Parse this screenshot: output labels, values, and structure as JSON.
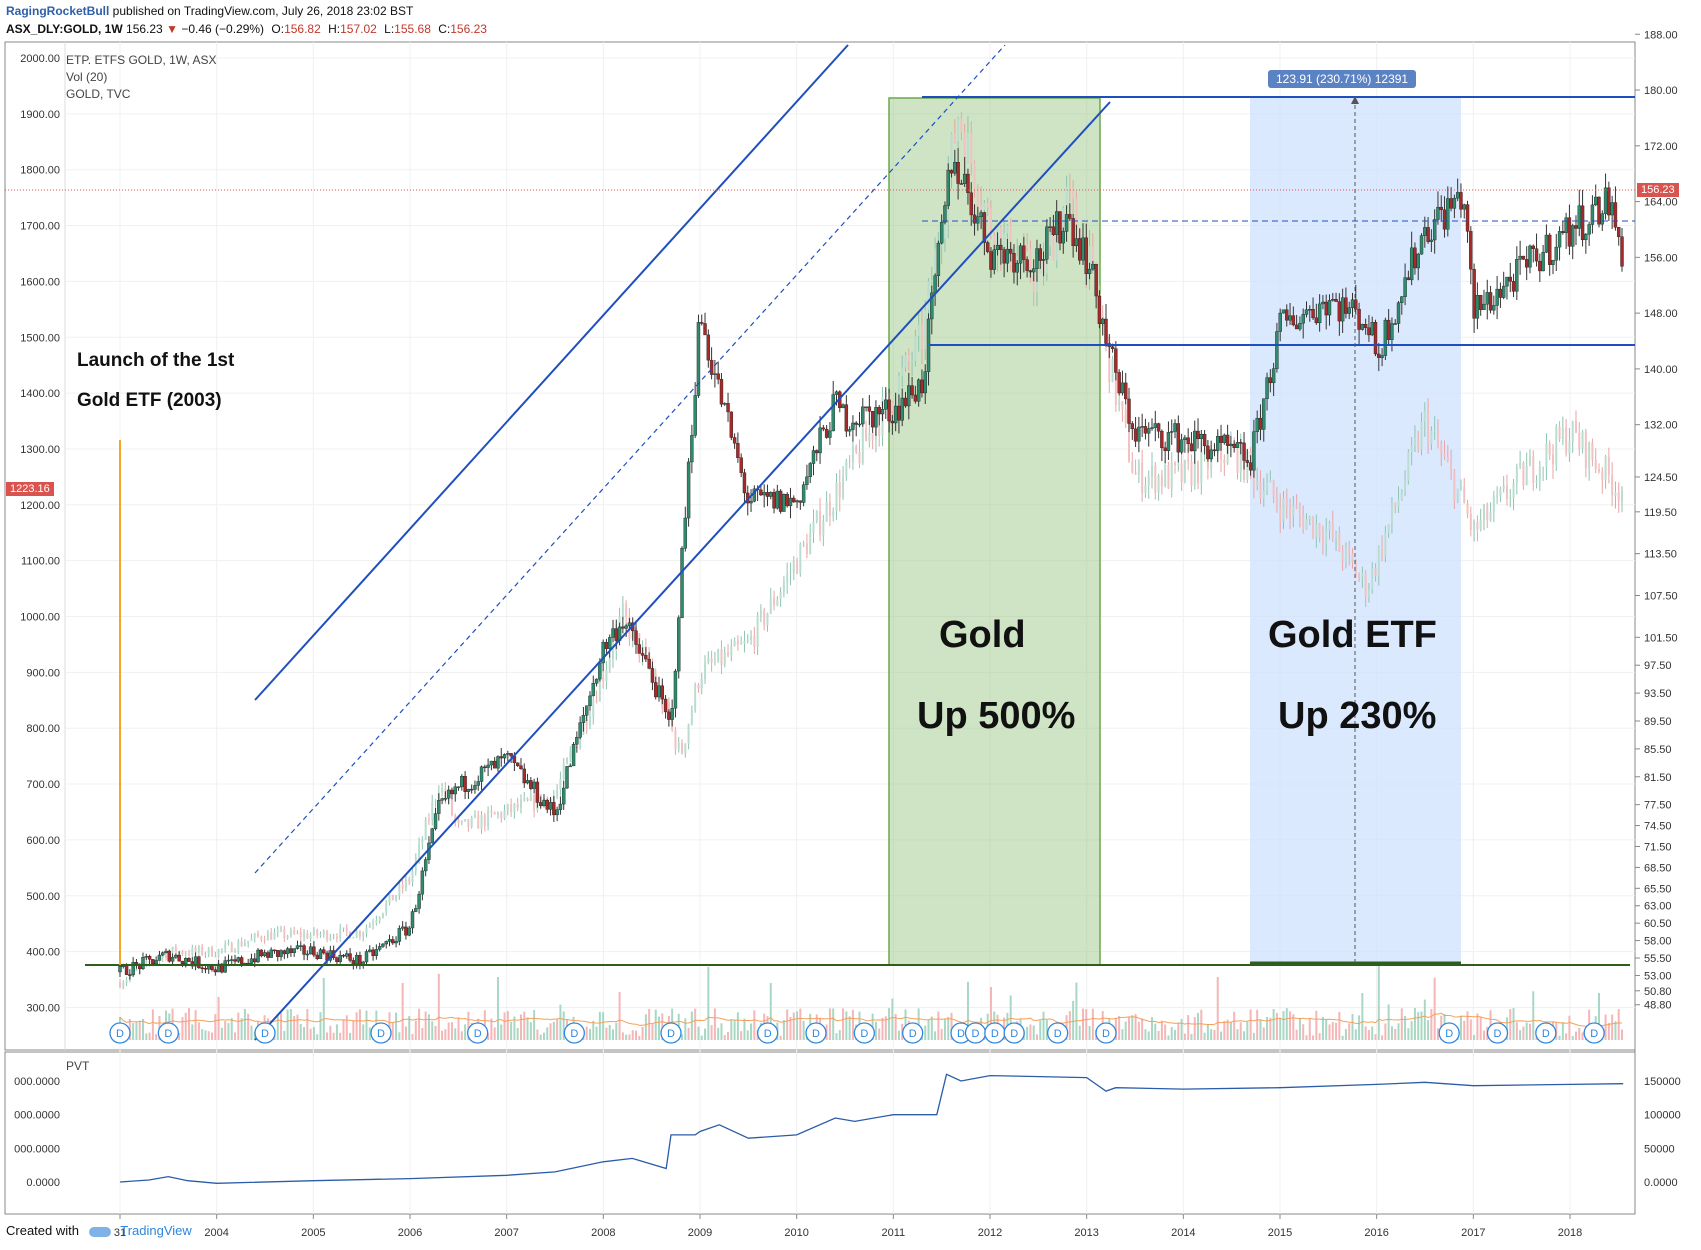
{
  "header": {
    "author": "RagingRocketBull",
    "published": " published on TradingView.com, July 26, 2018 23:02 BST",
    "symbol": "ASX_DLY:GOLD, 1W",
    "last": "156.23",
    "change": "−0.46 (−0.29%)",
    "o_label": "O:",
    "o": "156.82",
    "h_label": "H:",
    "h": "157.02",
    "l_label": "L:",
    "l": "155.68",
    "c_label": "C:",
    "c": "156.23"
  },
  "legend": {
    "line1": "ETP. ETFS GOLD, 1W, ASX",
    "line2": "Vol (20)",
    "line3": "GOLD, TVC"
  },
  "annotations": {
    "launch_line1": "Launch of the 1st",
    "launch_line2": "Gold ETF (2003)",
    "gold_title": "Gold",
    "gold_up": "Up 500%",
    "etf_title": "Gold ETF",
    "etf_up": "Up 230%",
    "measure": "123.91 (230.71%) 12391"
  },
  "price_tags": {
    "right": "156.23",
    "left": "1223.16"
  },
  "indicator": {
    "name": "PVT"
  },
  "footer": {
    "created": "Created with",
    "brand": "TradingView"
  },
  "colors": {
    "up": "#2e8b6e",
    "down": "#a52a2a",
    "trendline": "#1f4fbf",
    "green_zone": "#93c47d",
    "blue_zone": "#cfe2ff",
    "support": "#2e5e1e",
    "pvt": "#2b5ca8",
    "orange": "#f5a623"
  },
  "chart_data": {
    "type": "candlestick",
    "x_ticks": [
      "31",
      "2004",
      "2005",
      "2006",
      "2007",
      "2008",
      "2009",
      "2010",
      "2011",
      "2012",
      "2013",
      "2014",
      "2015",
      "2016",
      "2017",
      "2018"
    ],
    "left_axis_ticks": [
      "2000.00",
      "1900.00",
      "1800.00",
      "1700.00",
      "1600.00",
      "1500.00",
      "1400.00",
      "1300.00",
      "1200.00",
      "1100.00",
      "1000.00",
      "900.00",
      "800.00",
      "700.00",
      "600.00",
      "500.00",
      "400.00",
      "300.00"
    ],
    "right_axis_ticks": [
      "188.00",
      "180.00",
      "172.00",
      "164.00",
      "156.00",
      "148.00",
      "140.00",
      "132.00",
      "124.50",
      "119.50",
      "113.50",
      "107.50",
      "101.50",
      "97.50",
      "93.50",
      "89.50",
      "85.50",
      "81.50",
      "77.50",
      "74.50",
      "71.50",
      "68.50",
      "65.50",
      "63.00",
      "60.50",
      "58.00",
      "55.50",
      "53.00",
      "50.80",
      "48.80"
    ],
    "pvt_left_ticks": [
      "000.0000",
      "000.0000",
      "000.0000",
      "0.0000"
    ],
    "pvt_right_ticks": [
      "150000",
      "100000",
      "50000",
      "0.0000"
    ],
    "series": [
      {
        "name": "GOLD, TVC",
        "x": [
          2003.0,
          2003.5,
          2004.0,
          2004.5,
          2005.0,
          2005.5,
          2006.0,
          2006.3,
          2006.5,
          2007.0,
          2007.5,
          2008.0,
          2008.2,
          2008.5,
          2008.8,
          2009.0,
          2009.5,
          2010.0,
          2010.5,
          2011.0,
          2011.3,
          2011.67,
          2012.0,
          2012.5,
          2012.8,
          2013.0,
          2013.3,
          2013.5,
          2014.0,
          2014.5,
          2015.0,
          2015.5,
          2015.9,
          2016.0,
          2016.5,
          2016.9,
          2017.0,
          2017.5,
          2018.0,
          2018.5
        ],
        "y": [
          345,
          400,
          400,
          430,
          430,
          435,
          530,
          700,
          620,
          650,
          680,
          900,
          1000,
          900,
          750,
          900,
          950,
          1100,
          1250,
          1400,
          1500,
          1900,
          1700,
          1600,
          1750,
          1650,
          1400,
          1250,
          1250,
          1300,
          1200,
          1150,
          1050,
          1100,
          1350,
          1200,
          1150,
          1250,
          1330,
          1230
        ]
      },
      {
        "name": "ETP. ETFS GOLD",
        "x": [
          2003.0,
          2003.5,
          2004.0,
          2004.5,
          2005.0,
          2005.5,
          2006.0,
          2006.3,
          2006.5,
          2007.0,
          2007.5,
          2008.0,
          2008.2,
          2008.5,
          2008.7,
          2008.8,
          2009.0,
          2009.1,
          2009.5,
          2010.0,
          2010.4,
          2010.5,
          2011.0,
          2011.3,
          2011.6,
          2011.7,
          2012.0,
          2012.5,
          2012.8,
          2013.0,
          2013.3,
          2013.5,
          2014.0,
          2014.5,
          2014.7,
          2015.0,
          2015.5,
          2015.9,
          2016.0,
          2016.5,
          2016.9,
          2017.0,
          2017.5,
          2018.0,
          2018.4,
          2018.55
        ],
        "y": [
          53.5,
          56,
          54,
          56,
          56.5,
          55,
          60,
          77,
          80,
          84,
          76,
          100,
          104,
          96,
          88,
          110,
          148,
          142,
          121,
          121,
          135,
          133,
          134,
          138,
          170,
          168,
          157,
          156,
          162,
          156,
          139,
          131,
          130,
          128,
          127,
          146,
          150,
          147,
          142,
          160,
          165,
          148,
          154,
          160,
          164,
          156.23
        ]
      }
    ],
    "annotations": [
      {
        "label": "Launch of the 1st Gold ETF (2003)",
        "x": 2003.0
      },
      {
        "label": "Gold Up 500%",
        "x_range": [
          2011.0,
          2013.2
        ]
      },
      {
        "label": "Gold ETF Up 230%",
        "x_range": [
          2014.7,
          2016.85
        ],
        "measure": "123.91 (230.71%) 12391"
      }
    ],
    "levels": {
      "resistance_right": 179,
      "support_right": 125.5,
      "base_right": 54.5,
      "dashed_right": 149.5,
      "current_right": 156.23
    }
  }
}
